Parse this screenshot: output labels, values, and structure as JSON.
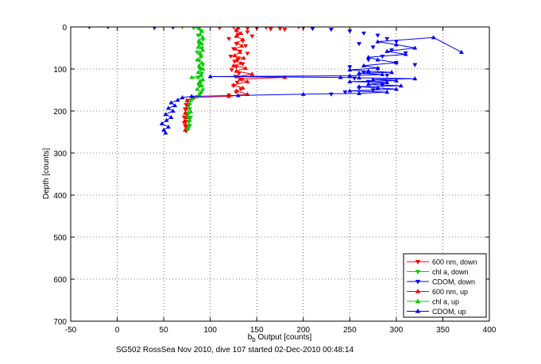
{
  "chart_data": {
    "type": "scatter",
    "xlabel": "b",
    "xlabel_sub": "b",
    "xlabel_rest": " Output [counts]",
    "ylabel": "Depth [counts]",
    "caption": "SG502 RossSea Nov 2010, dive 107 started 02-Dec-2010 00:48:14",
    "xlim": [
      -50,
      400
    ],
    "ylim": [
      0,
      700
    ],
    "y_reversed": true,
    "grid": true,
    "grid_style": "dotted",
    "legend_position": "bottom-right",
    "x_ticks": [
      "-50",
      "0",
      "50",
      "100",
      "150",
      "200",
      "250",
      "300",
      "350",
      "400"
    ],
    "x_tick_values": [
      -50,
      0,
      50,
      100,
      150,
      200,
      250,
      300,
      350,
      400
    ],
    "y_ticks": [
      "0",
      "100",
      "200",
      "300",
      "400",
      "500",
      "600",
      "700"
    ],
    "y_tick_values": [
      0,
      100,
      200,
      300,
      400,
      500,
      600,
      700
    ],
    "series": [
      {
        "name": "600 nm, down",
        "color": "#ff0000",
        "marker": "triangle-down",
        "line": false,
        "points": [
          [
            110,
            2
          ],
          [
            125,
            0
          ],
          [
            140,
            3
          ],
          [
            160,
            1
          ],
          [
            175,
            4
          ],
          [
            195,
            0
          ],
          [
            200,
            2
          ],
          [
            180,
            6
          ],
          [
            165,
            5
          ],
          [
            150,
            3
          ],
          [
            128,
            8
          ],
          [
            140,
            12
          ],
          [
            130,
            18
          ],
          [
            145,
            22
          ],
          [
            120,
            28
          ],
          [
            135,
            33
          ],
          [
            128,
            40
          ],
          [
            138,
            45
          ],
          [
            125,
            52
          ],
          [
            132,
            58
          ],
          [
            140,
            63
          ],
          [
            122,
            70
          ],
          [
            130,
            76
          ],
          [
            126,
            82
          ],
          [
            135,
            88
          ],
          [
            128,
            95
          ],
          [
            123,
            102
          ],
          [
            131,
            110
          ],
          [
            127,
            118
          ],
          [
            134,
            125
          ],
          [
            129,
            132
          ],
          [
            125,
            140
          ],
          [
            133,
            148
          ],
          [
            128,
            155
          ],
          [
            120,
            162
          ],
          [
            76,
            175
          ],
          [
            74,
            185
          ],
          [
            73,
            195
          ],
          [
            75,
            205
          ],
          [
            72,
            215
          ],
          [
            74,
            225
          ],
          [
            73,
            235
          ],
          [
            75,
            245
          ],
          [
            74,
            248
          ]
        ]
      },
      {
        "name": "chl a, down",
        "color": "#00cc00",
        "marker": "triangle-down",
        "line": false,
        "points": [
          [
            70,
            0
          ],
          [
            82,
            2
          ],
          [
            85,
            0
          ],
          [
            88,
            3
          ],
          [
            90,
            10
          ],
          [
            87,
            20
          ],
          [
            92,
            30
          ],
          [
            88,
            40
          ],
          [
            91,
            50
          ],
          [
            86,
            60
          ],
          [
            90,
            70
          ],
          [
            88,
            80
          ],
          [
            92,
            90
          ],
          [
            89,
            100
          ],
          [
            91,
            110
          ],
          [
            87,
            120
          ],
          [
            90,
            130
          ],
          [
            88,
            140
          ],
          [
            92,
            150
          ],
          [
            89,
            160
          ],
          [
            79,
            175
          ],
          [
            77,
            185
          ],
          [
            78,
            195
          ],
          [
            76,
            205
          ],
          [
            79,
            215
          ],
          [
            77,
            225
          ],
          [
            78,
            235
          ],
          [
            76,
            242
          ]
        ]
      },
      {
        "name": "CDOM, down",
        "color": "#0000ff",
        "marker": "triangle-down",
        "line": false,
        "points": [
          [
            -30,
            0
          ],
          [
            -10,
            0
          ],
          [
            40,
            2
          ],
          [
            60,
            1
          ],
          [
            210,
            4
          ],
          [
            230,
            6
          ],
          [
            250,
            10
          ],
          [
            265,
            15
          ],
          [
            280,
            20
          ],
          [
            290,
            28
          ],
          [
            300,
            35
          ],
          [
            260,
            40
          ],
          [
            275,
            48
          ],
          [
            295,
            55
          ],
          [
            310,
            62
          ],
          [
            285,
            70
          ],
          [
            270,
            78
          ],
          [
            300,
            85
          ],
          [
            320,
            90
          ],
          [
            250,
            95
          ],
          [
            280,
            100
          ],
          [
            265,
            108
          ],
          [
            290,
            115
          ],
          [
            255,
            122
          ],
          [
            270,
            130
          ],
          [
            285,
            138
          ],
          [
            260,
            145
          ],
          [
            275,
            150
          ],
          [
            245,
            155
          ],
          [
            230,
            160
          ]
        ]
      },
      {
        "name": "600 nm, up",
        "color": "#ff0000",
        "marker": "triangle-up",
        "line": true,
        "points": [
          [
            73,
            245
          ],
          [
            74,
            235
          ],
          [
            72,
            225
          ],
          [
            75,
            215
          ],
          [
            73,
            205
          ],
          [
            74,
            195
          ],
          [
            76,
            185
          ],
          [
            75,
            175
          ],
          [
            82,
            168
          ],
          [
            120,
            165
          ],
          [
            140,
            160
          ],
          [
            128,
            152
          ],
          [
            135,
            145
          ],
          [
            125,
            138
          ],
          [
            140,
            130
          ],
          [
            132,
            124
          ],
          [
            180,
            120
          ],
          [
            130,
            118
          ],
          [
            145,
            112
          ],
          [
            128,
            105
          ],
          [
            138,
            98
          ],
          [
            125,
            92
          ],
          [
            133,
            86
          ],
          [
            128,
            80
          ],
          [
            136,
            74
          ],
          [
            126,
            68
          ],
          [
            132,
            60
          ],
          [
            127,
            52
          ],
          [
            134,
            45
          ],
          [
            129,
            38
          ],
          [
            135,
            30
          ],
          [
            128,
            22
          ],
          [
            133,
            15
          ],
          [
            128,
            8
          ],
          [
            130,
            2
          ]
        ]
      },
      {
        "name": "chl a, up",
        "color": "#00cc00",
        "marker": "triangle-up",
        "line": true,
        "points": [
          [
            76,
            242
          ],
          [
            77,
            232
          ],
          [
            78,
            222
          ],
          [
            76,
            212
          ],
          [
            79,
            202
          ],
          [
            77,
            192
          ],
          [
            78,
            182
          ],
          [
            80,
            172
          ],
          [
            85,
            166
          ],
          [
            88,
            162
          ],
          [
            90,
            155
          ],
          [
            86,
            148
          ],
          [
            91,
            140
          ],
          [
            88,
            132
          ],
          [
            92,
            125
          ],
          [
            80,
            120
          ],
          [
            90,
            115
          ],
          [
            87,
            108
          ],
          [
            92,
            100
          ],
          [
            88,
            92
          ],
          [
            91,
            85
          ],
          [
            86,
            78
          ],
          [
            90,
            70
          ],
          [
            89,
            62
          ],
          [
            92,
            55
          ],
          [
            87,
            48
          ],
          [
            91,
            40
          ],
          [
            88,
            32
          ],
          [
            92,
            25
          ],
          [
            89,
            18
          ],
          [
            91,
            10
          ],
          [
            88,
            3
          ]
        ]
      },
      {
        "name": "CDOM, up",
        "color": "#0000ff",
        "marker": "triangle-up",
        "line": true,
        "points": [
          [
            52,
            252
          ],
          [
            50,
            245
          ],
          [
            55,
            238
          ],
          [
            48,
            230
          ],
          [
            53,
            222
          ],
          [
            58,
            215
          ],
          [
            52,
            208
          ],
          [
            60,
            200
          ],
          [
            55,
            193
          ],
          [
            62,
            187
          ],
          [
            58,
            180
          ],
          [
            65,
            174
          ],
          [
            70,
            168
          ],
          [
            80,
            165
          ],
          [
            130,
            163
          ],
          [
            200,
            160
          ],
          [
            260,
            158
          ],
          [
            290,
            155
          ],
          [
            250,
            152
          ],
          [
            300,
            148
          ],
          [
            280,
            145
          ],
          [
            260,
            142
          ],
          [
            305,
            140
          ],
          [
            270,
            136
          ],
          [
            290,
            132
          ],
          [
            250,
            130
          ],
          [
            300,
            128
          ],
          [
            275,
            125
          ],
          [
            320,
            123
          ],
          [
            260,
            121
          ],
          [
            240,
            120
          ],
          [
            100,
            118
          ],
          [
            250,
            116
          ],
          [
            285,
            113
          ],
          [
            260,
            110
          ],
          [
            295,
            108
          ],
          [
            270,
            105
          ],
          [
            250,
            102
          ],
          [
            280,
            98
          ],
          [
            265,
            92
          ],
          [
            300,
            85
          ],
          [
            280,
            78
          ],
          [
            270,
            72
          ],
          [
            310,
            65
          ],
          [
            290,
            58
          ],
          [
            320,
            50
          ],
          [
            300,
            42
          ],
          [
            280,
            35
          ],
          [
            340,
            25
          ],
          [
            370,
            60
          ]
        ]
      }
    ]
  }
}
